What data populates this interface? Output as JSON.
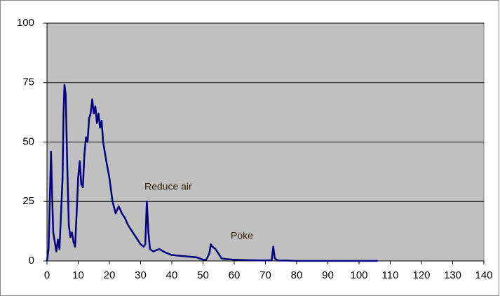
{
  "chart_data": {
    "type": "line",
    "annotations": [
      "Reduce air",
      "Poke"
    ],
    "x": [
      0,
      0.5,
      1,
      1.3,
      1.6,
      2,
      2.5,
      3,
      3.5,
      4,
      4.5,
      5,
      5.3,
      5.6,
      6,
      6.5,
      7,
      7.5,
      8,
      8.5,
      9,
      9.5,
      10,
      10.5,
      11,
      11.5,
      12,
      12.5,
      13,
      13.5,
      14,
      14.5,
      15,
      15.5,
      16,
      16.5,
      17,
      17.5,
      18,
      19,
      20,
      21,
      22,
      23,
      24,
      25,
      26,
      27,
      28,
      29,
      30,
      31,
      31.5,
      32,
      32.5,
      33,
      34,
      36,
      38,
      40,
      44,
      48,
      50,
      51,
      52,
      52.5,
      53,
      54,
      55,
      56,
      58,
      60,
      65,
      70,
      72,
      72.5,
      73,
      74,
      78,
      80,
      90,
      100,
      106
    ],
    "series": [
      {
        "color": "#000080",
        "values": [
          0,
          5,
          30,
          46,
          30,
          12,
          8,
          4,
          9,
          5,
          20,
          35,
          62,
          74,
          70,
          40,
          15,
          10,
          12,
          8,
          6,
          20,
          35,
          42,
          32,
          31,
          45,
          52,
          50,
          60,
          62,
          68,
          62,
          65,
          58,
          62,
          56,
          59,
          50,
          42,
          35,
          25,
          20,
          23,
          20,
          18,
          15,
          13,
          11,
          9,
          7,
          6,
          7,
          25,
          12,
          5,
          4,
          5,
          3.5,
          2.5,
          2,
          1.5,
          0.5,
          0.5,
          3,
          7,
          6,
          5,
          3,
          1,
          0.7,
          0.5,
          0.3,
          0.2,
          0.3,
          6,
          1,
          0.2,
          0.1,
          0,
          0,
          0,
          0
        ]
      }
    ],
    "xlim": [
      0,
      140
    ],
    "xticks": [
      0,
      10,
      20,
      30,
      40,
      50,
      60,
      70,
      80,
      90,
      100,
      110,
      120,
      130,
      140
    ],
    "ylim": [
      0,
      100
    ],
    "yticks": [
      0,
      25,
      50,
      75,
      100
    ],
    "grid": true,
    "background": "#c0c0c0"
  }
}
